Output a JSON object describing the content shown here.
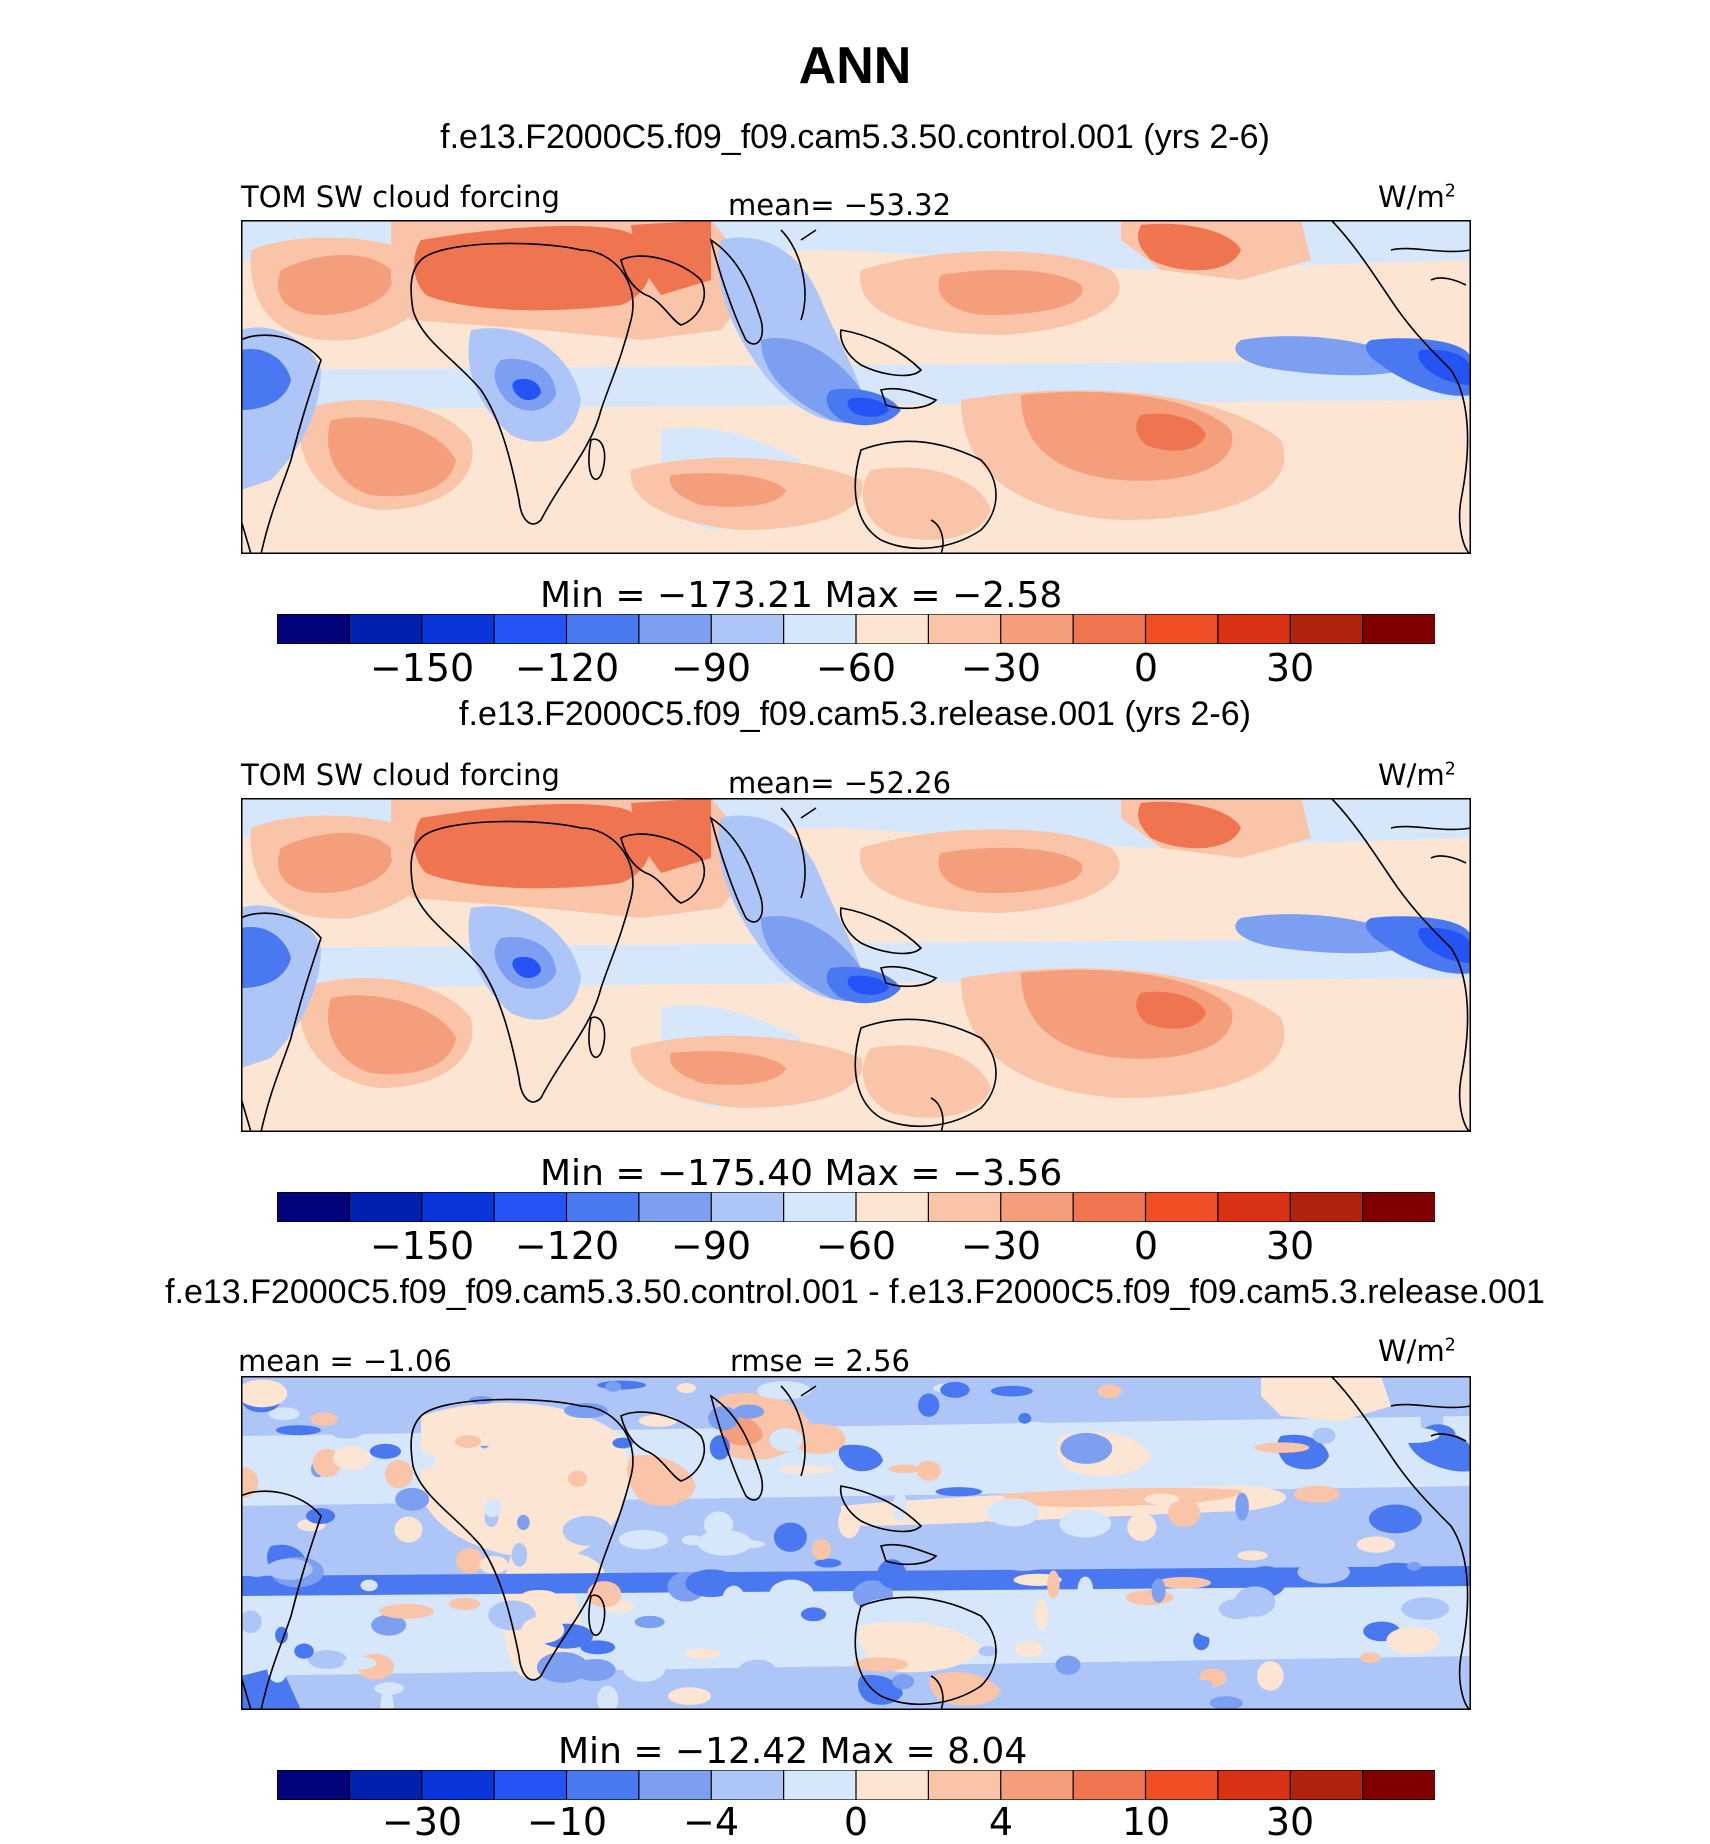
{
  "figure": {
    "title": "ANN"
  },
  "panels": [
    {
      "case_title": "f.e13.F2000C5.f09_f09.cam5.3.50.control.001 (yrs 2-6)",
      "left_label": "TOM SW cloud forcing",
      "center_label": "mean= −53.32",
      "units": "W/m",
      "units_sup": "2",
      "minmax": "Min = −173.21 Max =  −2.58",
      "colorbar_ticks": [
        "−150",
        "−120",
        "−90",
        "−60",
        "−30",
        "0",
        "30"
      ]
    },
    {
      "case_title": "f.e13.F2000C5.f09_f09.cam5.3.release.001 (yrs 2-6)",
      "left_label": "TOM SW cloud forcing",
      "center_label": "mean= −52.26",
      "units": "W/m",
      "units_sup": "2",
      "minmax": "Min = −175.40 Max =  −3.56",
      "colorbar_ticks": [
        "−150",
        "−120",
        "−90",
        "−60",
        "−30",
        "0",
        "30"
      ]
    },
    {
      "case_title": "f.e13.F2000C5.f09_f09.cam5.3.50.control.001 - f.e13.F2000C5.f09_f09.cam5.3.release.001",
      "left_label": "mean =  −1.06",
      "center_label": "rmse =   2.56",
      "units": "W/m",
      "units_sup": "2",
      "minmax": "Min = −12.42 Max =   8.04",
      "colorbar_ticks": [
        "−30",
        "−10",
        "−4",
        "0",
        "4",
        "10",
        "30"
      ]
    }
  ],
  "colorbar_colors": [
    "#00037a",
    "#0020b0",
    "#0a35db",
    "#2454f5",
    "#4a78f0",
    "#7c9ff2",
    "#aec5f7",
    "#d6e6fb",
    "#fde5d3",
    "#f9c4a8",
    "#f49e7c",
    "#ef7550",
    "#f04e24",
    "#d93214",
    "#b0220c",
    "#800000"
  ],
  "map_colors": {
    "ocean_base": "#fde5d3",
    "light_blue": "#d6e6fb",
    "mid_blue": "#aec5f7",
    "blue": "#7c9ff2",
    "strong_blue": "#4a78f0",
    "deep_blue": "#2454f5",
    "light_red": "#f9c4a8",
    "mid_red": "#f49e7c",
    "red": "#ef7550"
  }
}
